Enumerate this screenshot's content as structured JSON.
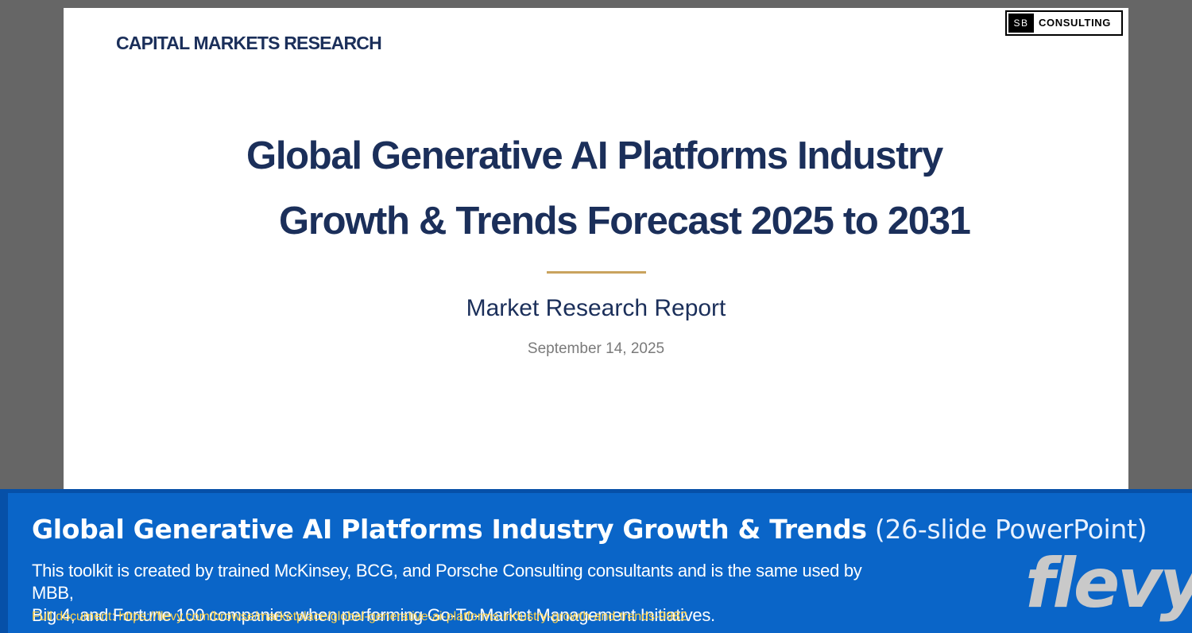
{
  "slide": {
    "brand_label": "CAPITAL MARKETS RESEARCH",
    "logo": {
      "mark": "SB",
      "text": "CONSULTING"
    },
    "title_line_1": "Global Generative AI Platforms Industry",
    "title_line_2": "Growth & Trends Forecast 2025 to 2031",
    "subtitle": "Market Research Report",
    "date": "September 14, 2025"
  },
  "banner": {
    "title": "Global Generative AI Platforms Industry Growth & Trends",
    "title_suffix": "(26-slide PowerPoint)",
    "description_line_1": "This toolkit is created by trained McKinsey, BCG, and Porsche Consulting consultants and is the same used by MBB,",
    "description_line_2": "Big 4, and Fortune 100 companies when performing Go-To-Market Management Initiatives.",
    "link_text": "Full document: https://flevy.com/browse/marketplace/global-generative-ai-platforms-industry-growth-and-trends-9982",
    "logo_text": "flevy"
  },
  "colors": {
    "page_background": "#666666",
    "slide_background": "#ffffff",
    "title_navy": "#1b2f5a",
    "gold_accent": "#c9a35e",
    "banner_blue": "#0a65c8",
    "link_yellow": "#ffd24a"
  }
}
